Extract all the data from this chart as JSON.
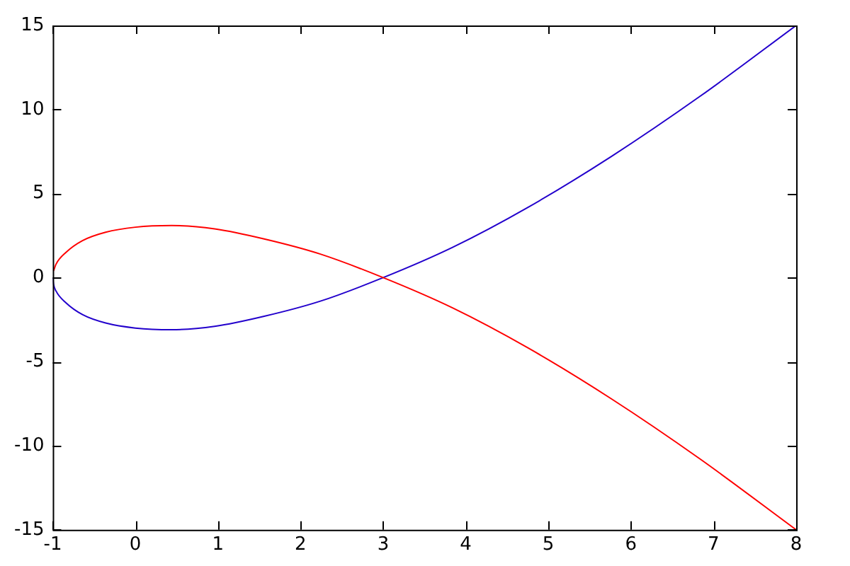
{
  "chart_data": {
    "type": "line",
    "xlim": [
      -1,
      8
    ],
    "ylim": [
      -15,
      15
    ],
    "xticks": [
      -1,
      0,
      1,
      2,
      3,
      4,
      5,
      6,
      7,
      8
    ],
    "yticks": [
      -15,
      -10,
      -5,
      0,
      5,
      10,
      15
    ],
    "grid": false,
    "legend": false,
    "marker": "none",
    "line_style": "solid",
    "series": [
      {
        "color": "#ff0000",
        "x": [
          -0.99,
          -0.96,
          -0.84,
          -0.64,
          -0.36,
          0,
          0.44,
          0.96,
          1.56,
          2.24,
          3,
          3.84,
          4.76,
          5.76,
          6.84,
          8
        ],
        "values": [
          0.4,
          0.8,
          1.5,
          2.2,
          2.7,
          3,
          3.1,
          2.9,
          2.3,
          1.4,
          0,
          -1.8,
          -4.2,
          -7.2,
          -10.8,
          -15
        ]
      },
      {
        "color": "#2200cc",
        "x": [
          -1,
          -0.99,
          -0.96,
          -0.84,
          -0.64,
          -0.36,
          0,
          0.44,
          0.96,
          1.56,
          2.24,
          3,
          3.84,
          4.76,
          5.76,
          6.84,
          8
        ],
        "values": [
          0,
          -0.4,
          -0.8,
          -1.5,
          -2.2,
          -2.7,
          -3,
          -3.1,
          -2.9,
          -2.3,
          -1.4,
          0,
          1.8,
          4.2,
          7.2,
          10.8,
          15
        ]
      }
    ]
  }
}
